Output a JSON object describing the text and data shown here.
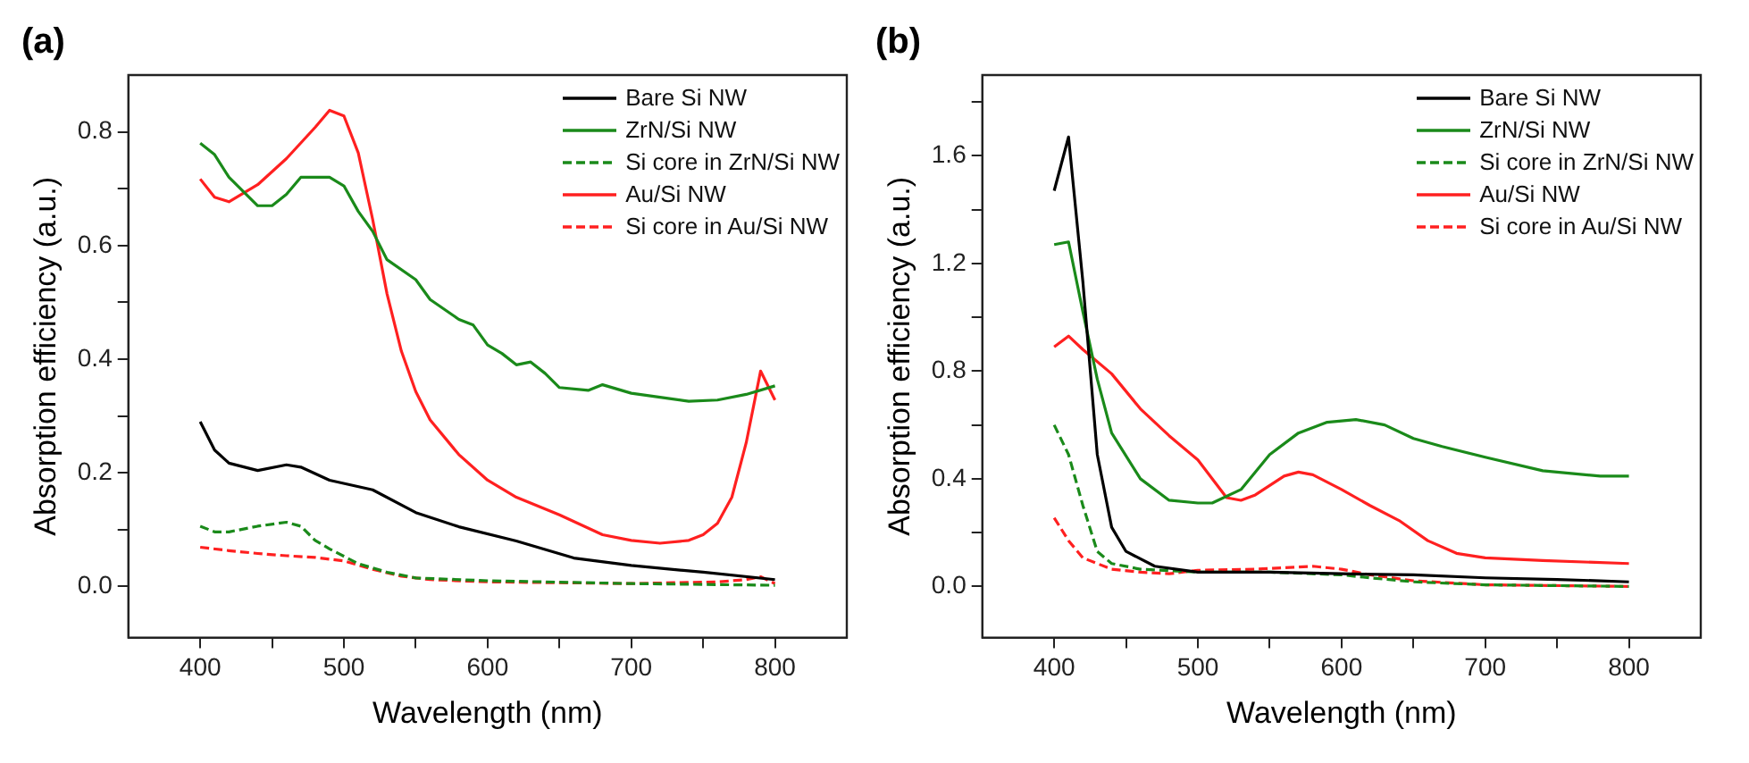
{
  "chart_data": [
    {
      "type": "line",
      "title": "(a)",
      "xlabel": "Wavelength (nm)",
      "ylabel": "Absorption efficiency (a.u.)",
      "xlim": [
        350,
        850
      ],
      "ylim": [
        -0.09,
        0.9
      ],
      "xticks": [
        400,
        {
          "value": 450,
          "label": null
        },
        500,
        {
          "value": 550,
          "label": null
        },
        600,
        {
          "value": 650,
          "label": null
        },
        700,
        {
          "value": 750,
          "label": null
        },
        800
      ],
      "yticks": [
        {
          "value": 0,
          "label": "0.0"
        },
        {
          "value": 0.1,
          "label": null
        },
        {
          "value": 0.2,
          "label": "0.2"
        },
        {
          "value": 0.3,
          "label": null
        },
        {
          "value": 0.4,
          "label": "0.4"
        },
        {
          "value": 0.5,
          "label": null
        },
        {
          "value": 0.6,
          "label": "0.6"
        },
        {
          "value": 0.7,
          "label": null
        },
        {
          "value": 0.8,
          "label": "0.8"
        }
      ],
      "grid": false,
      "legend": "top right",
      "marker": "none",
      "series": [
        {
          "name": "Bare Si NW",
          "color": "#000000",
          "line_style": "solid",
          "x": [
            400,
            410,
            420,
            440,
            460,
            470,
            490,
            520,
            550,
            580,
            620,
            660,
            700,
            750,
            800
          ],
          "values": [
            0.29,
            0.24,
            0.217,
            0.204,
            0.214,
            0.21,
            0.187,
            0.17,
            0.13,
            0.105,
            0.08,
            0.05,
            0.037,
            0.025,
            0.012
          ]
        },
        {
          "name": "ZrN/Si NW",
          "color": "#1a8a1a",
          "line_style": "solid",
          "x": [
            400,
            410,
            420,
            440,
            450,
            460,
            470,
            490,
            500,
            510,
            520,
            530,
            550,
            560,
            580,
            590,
            600,
            610,
            620,
            630,
            640,
            650,
            670,
            680,
            700,
            720,
            740,
            760,
            780,
            800
          ],
          "values": [
            0.78,
            0.76,
            0.72,
            0.67,
            0.67,
            0.69,
            0.72,
            0.72,
            0.705,
            0.66,
            0.625,
            0.575,
            0.54,
            0.505,
            0.47,
            0.46,
            0.425,
            0.41,
            0.39,
            0.395,
            0.375,
            0.35,
            0.345,
            0.355,
            0.34,
            0.333,
            0.326,
            0.328,
            0.338,
            0.353
          ]
        },
        {
          "name": "Si core in ZrN/Si NW",
          "color": "#1a8a1a",
          "line_style": "dashed",
          "x": [
            400,
            410,
            420,
            440,
            460,
            470,
            480,
            490,
            510,
            530,
            550,
            600,
            700,
            800
          ],
          "values": [
            0.106,
            0.096,
            0.096,
            0.106,
            0.113,
            0.106,
            0.081,
            0.066,
            0.04,
            0.025,
            0.015,
            0.01,
            0.005,
            0.002
          ]
        },
        {
          "name": "Au/Si NW",
          "color": "#ff2020",
          "line_style": "solid",
          "x": [
            400,
            410,
            420,
            440,
            460,
            480,
            490,
            500,
            510,
            520,
            530,
            540,
            550,
            560,
            580,
            600,
            620,
            650,
            680,
            700,
            720,
            740,
            750,
            760,
            770,
            780,
            790,
            800
          ],
          "values": [
            0.717,
            0.685,
            0.677,
            0.707,
            0.753,
            0.808,
            0.838,
            0.828,
            0.763,
            0.646,
            0.515,
            0.414,
            0.343,
            0.293,
            0.232,
            0.187,
            0.157,
            0.126,
            0.091,
            0.081,
            0.076,
            0.081,
            0.091,
            0.111,
            0.157,
            0.253,
            0.379,
            0.328
          ]
        },
        {
          "name": "Si core in Au/Si NW",
          "color": "#ff2020",
          "line_style": "dashed",
          "x": [
            400,
            420,
            440,
            460,
            480,
            500,
            520,
            540,
            560,
            600,
            700,
            760,
            780,
            790,
            800
          ],
          "values": [
            0.069,
            0.063,
            0.058,
            0.054,
            0.051,
            0.045,
            0.03,
            0.018,
            0.012,
            0.008,
            0.005,
            0.008,
            0.012,
            0.017,
            0.005
          ]
        }
      ]
    },
    {
      "type": "line",
      "title": "(b)",
      "xlabel": "Wavelength (nm)",
      "ylabel": "Absorption efficiency (a.u.)",
      "xlim": [
        350,
        850
      ],
      "ylim": [
        -0.19,
        1.9
      ],
      "xticks": [
        400,
        {
          "value": 450,
          "label": null
        },
        500,
        {
          "value": 550,
          "label": null
        },
        600,
        {
          "value": 650,
          "label": null
        },
        700,
        {
          "value": 750,
          "label": null
        },
        800
      ],
      "yticks": [
        {
          "value": 0,
          "label": "0.0"
        },
        {
          "value": 0.2,
          "label": null
        },
        {
          "value": 0.4,
          "label": "0.4"
        },
        {
          "value": 0.6,
          "label": null
        },
        {
          "value": 0.8,
          "label": "0.8"
        },
        {
          "value": 1.0,
          "label": null
        },
        {
          "value": 1.2,
          "label": "1.2"
        },
        {
          "value": 1.4,
          "label": null
        },
        {
          "value": 1.6,
          "label": "1.6"
        },
        {
          "value": 1.8,
          "label": null
        }
      ],
      "grid": false,
      "legend": "top right",
      "marker": "none",
      "series": [
        {
          "name": "Bare Si NW",
          "color": "#000000",
          "line_style": "solid",
          "x": [
            400,
            410,
            420,
            430,
            440,
            450,
            470,
            500,
            550,
            600,
            650,
            700,
            750,
            800
          ],
          "values": [
            1.47,
            1.67,
            1.13,
            0.49,
            0.22,
            0.13,
            0.075,
            0.053,
            0.053,
            0.047,
            0.043,
            0.032,
            0.026,
            0.017
          ]
        },
        {
          "name": "ZrN/Si NW",
          "color": "#1a8a1a",
          "line_style": "solid",
          "x": [
            400,
            410,
            420,
            430,
            440,
            460,
            480,
            500,
            510,
            530,
            550,
            570,
            590,
            610,
            630,
            650,
            670,
            700,
            740,
            780,
            800
          ],
          "values": [
            1.27,
            1.28,
            1.02,
            0.77,
            0.57,
            0.4,
            0.32,
            0.31,
            0.31,
            0.36,
            0.49,
            0.57,
            0.61,
            0.62,
            0.6,
            0.55,
            0.52,
            0.48,
            0.43,
            0.41,
            0.41
          ]
        },
        {
          "name": "Si core in ZrN/Si NW",
          "color": "#1a8a1a",
          "line_style": "dashed",
          "x": [
            400,
            410,
            420,
            430,
            440,
            460,
            500,
            550,
            600,
            620,
            650,
            700,
            800
          ],
          "values": [
            0.6,
            0.49,
            0.3,
            0.13,
            0.085,
            0.064,
            0.053,
            0.053,
            0.043,
            0.032,
            0.017,
            0.006,
            0
          ]
        },
        {
          "name": "Au/Si NW",
          "color": "#ff2020",
          "line_style": "solid",
          "x": [
            400,
            410,
            420,
            440,
            460,
            480,
            500,
            520,
            530,
            540,
            560,
            570,
            580,
            600,
            620,
            640,
            660,
            680,
            700,
            740,
            800
          ],
          "values": [
            0.89,
            0.93,
            0.88,
            0.79,
            0.66,
            0.56,
            0.47,
            0.33,
            0.32,
            0.34,
            0.41,
            0.425,
            0.415,
            0.36,
            0.3,
            0.245,
            0.17,
            0.123,
            0.106,
            0.096,
            0.085
          ]
        },
        {
          "name": "Si core in Au/Si NW",
          "color": "#ff2020",
          "line_style": "dashed",
          "x": [
            400,
            410,
            420,
            440,
            460,
            480,
            500,
            540,
            580,
            600,
            620,
            650,
            700,
            800
          ],
          "values": [
            0.255,
            0.17,
            0.106,
            0.064,
            0.053,
            0.047,
            0.06,
            0.064,
            0.075,
            0.064,
            0.043,
            0.021,
            0.006,
            0
          ]
        }
      ]
    }
  ]
}
